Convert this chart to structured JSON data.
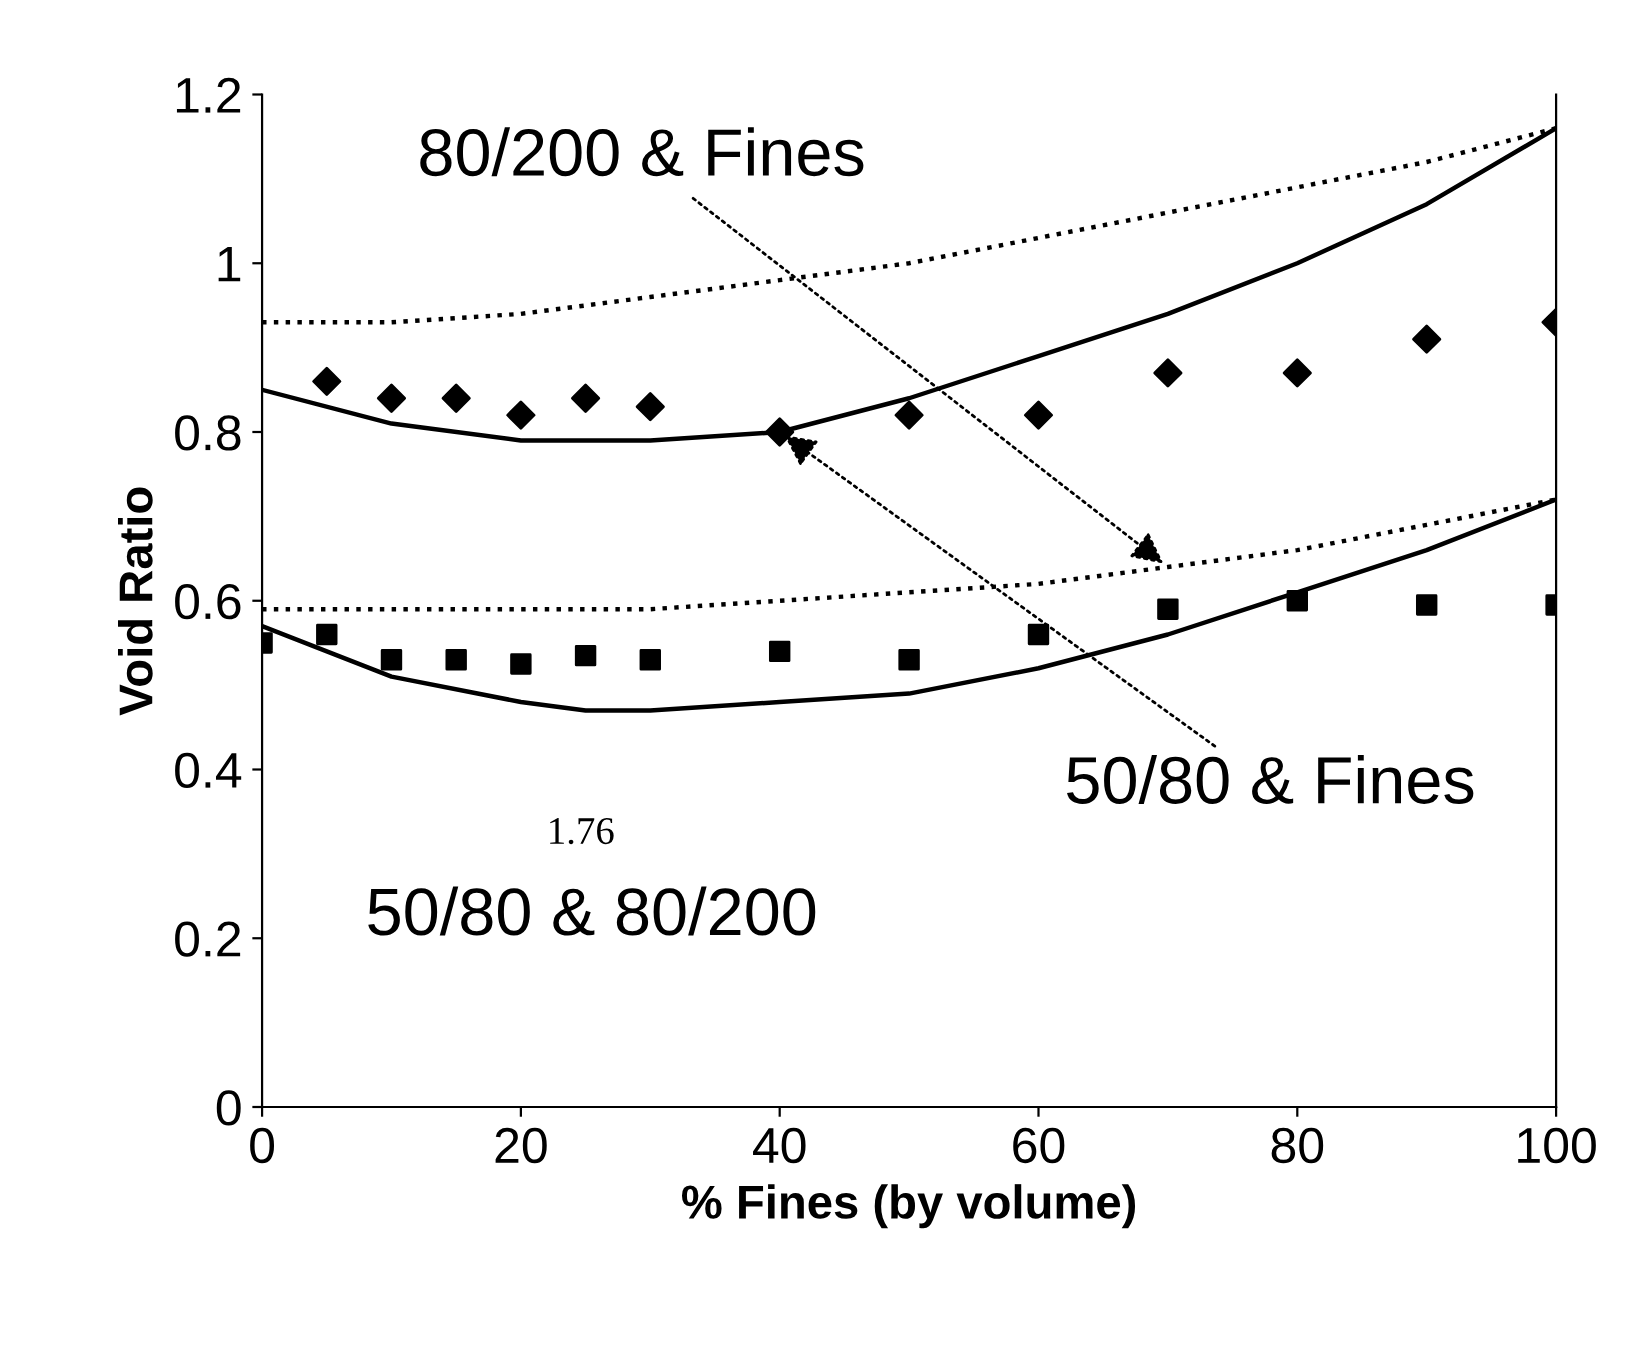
{
  "chart_data": {
    "type": "scatter",
    "xlabel": "% Fines (by volume)",
    "ylabel": "Void Ratio",
    "xlim": [
      0,
      100
    ],
    "ylim": [
      0,
      1.2
    ],
    "xticks": [
      0,
      20,
      40,
      60,
      80,
      100
    ],
    "yticks": [
      0,
      0.2,
      0.4,
      0.6,
      0.8,
      1,
      1.2
    ],
    "grid": false,
    "legend": false,
    "series": [
      {
        "color": "#000000",
        "marker": "diamond",
        "x": [
          5,
          10,
          15,
          20,
          25,
          30,
          40,
          50,
          60,
          70,
          80,
          90,
          100
        ],
        "values": [
          0.86,
          0.84,
          0.84,
          0.82,
          0.84,
          0.83,
          0.8,
          0.82,
          0.82,
          0.87,
          0.87,
          0.91,
          0.93
        ]
      },
      {
        "color": "#000000",
        "marker": "square",
        "x": [
          0,
          5,
          10,
          15,
          20,
          25,
          30,
          40,
          50,
          60,
          70,
          80,
          90,
          100
        ],
        "values": [
          0.55,
          0.56,
          0.53,
          0.53,
          0.525,
          0.535,
          0.53,
          0.54,
          0.53,
          0.56,
          0.59,
          0.6,
          0.595,
          0.595
        ]
      },
      {
        "type": "line",
        "color": "#000000",
        "line_style": "solid",
        "x": [
          0,
          10,
          20,
          25,
          30,
          40,
          50,
          60,
          70,
          80,
          90,
          100
        ],
        "values": [
          0.85,
          0.81,
          0.79,
          0.79,
          0.79,
          0.8,
          0.84,
          0.89,
          0.94,
          1.0,
          1.07,
          1.16
        ]
      },
      {
        "type": "line",
        "color": "#000000",
        "line_style": "dotted",
        "x": [
          0,
          10,
          20,
          30,
          40,
          50,
          60,
          70,
          80,
          90,
          100
        ],
        "values": [
          0.93,
          0.93,
          0.94,
          0.96,
          0.98,
          1.0,
          1.03,
          1.06,
          1.09,
          1.12,
          1.16
        ]
      },
      {
        "type": "line",
        "color": "#000000",
        "line_style": "solid",
        "x": [
          0,
          10,
          20,
          25,
          30,
          40,
          50,
          60,
          70,
          80,
          90,
          100
        ],
        "values": [
          0.57,
          0.51,
          0.48,
          0.47,
          0.47,
          0.48,
          0.49,
          0.52,
          0.56,
          0.61,
          0.66,
          0.72
        ]
      },
      {
        "type": "line",
        "color": "#000000",
        "line_style": "dotted",
        "x": [
          0,
          10,
          20,
          30,
          40,
          50,
          60,
          70,
          80,
          90,
          100
        ],
        "values": [
          0.59,
          0.59,
          0.59,
          0.59,
          0.6,
          0.61,
          0.62,
          0.64,
          0.66,
          0.69,
          0.72
        ]
      }
    ],
    "annotations": [
      {
        "text": "80/200 & Fines",
        "x": 70,
        "y": 0.64
      },
      {
        "text": "50/80 & Fines",
        "x": 40,
        "y": 0.8
      },
      "1.76",
      "50/80 & 80/200"
    ]
  }
}
